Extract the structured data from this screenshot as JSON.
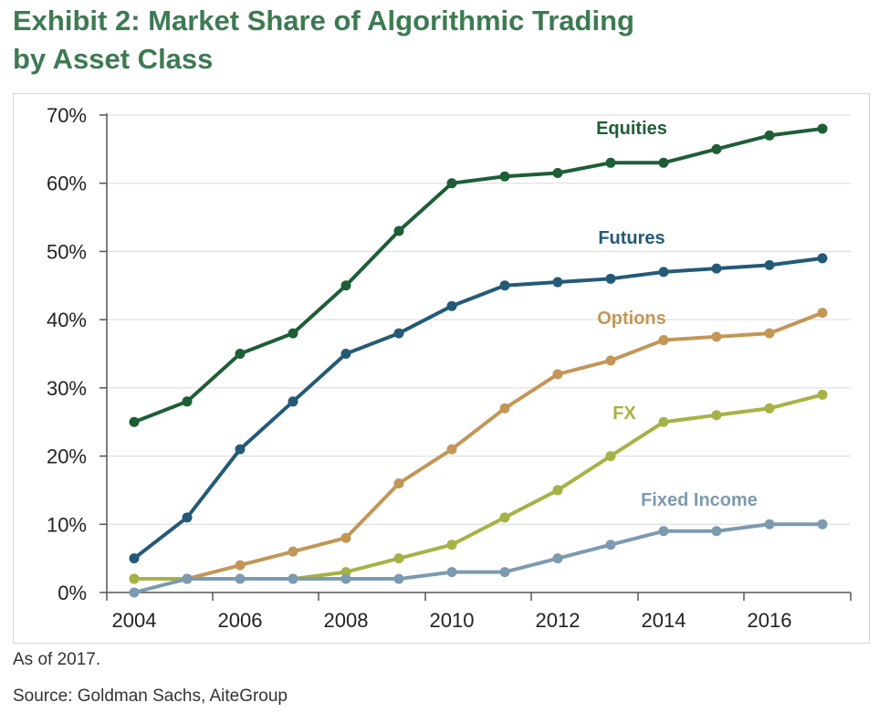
{
  "title_line1": "Exhibit 2: Market Share of Algorithmic Trading",
  "title_line2": "by Asset Class",
  "footnote": "As of 2017.",
  "source": "Source: Goldman Sachs, AiteGroup",
  "chart_data": {
    "type": "line",
    "x": [
      2004,
      2005,
      2006,
      2007,
      2008,
      2009,
      2010,
      2011,
      2012,
      2013,
      2014,
      2015,
      2016,
      2017
    ],
    "xticks": [
      "2004",
      "2006",
      "2008",
      "2010",
      "2012",
      "2014",
      "2016"
    ],
    "yticks": [
      "0%",
      "10%",
      "20%",
      "30%",
      "40%",
      "50%",
      "60%",
      "70%"
    ],
    "ylim": [
      0,
      70
    ],
    "grid": "horizontal",
    "series": [
      {
        "name": "Equities",
        "color": "#1e5e36",
        "values": [
          25,
          28,
          35,
          38,
          45,
          53,
          60,
          61,
          61.5,
          63,
          63,
          65,
          67,
          68
        ]
      },
      {
        "name": "Futures",
        "color": "#245a78",
        "values": [
          5,
          11,
          21,
          28,
          35,
          38,
          42,
          45,
          45.5,
          46,
          47,
          47.5,
          48,
          49
        ]
      },
      {
        "name": "Options",
        "color": "#c39656",
        "values": [
          2,
          2,
          4,
          6,
          8,
          16,
          21,
          27,
          32,
          34,
          37,
          37.5,
          38,
          41
        ]
      },
      {
        "name": "FX",
        "color": "#a6b246",
        "values": [
          2,
          2,
          2,
          2,
          3,
          5,
          7,
          11,
          15,
          20,
          25,
          26,
          27,
          29
        ]
      },
      {
        "name": "Fixed Income",
        "color": "#7c9ab0",
        "values": [
          0,
          2,
          2,
          2,
          2,
          2,
          3,
          3,
          5,
          7,
          9,
          9,
          10,
          10
        ]
      }
    ]
  }
}
